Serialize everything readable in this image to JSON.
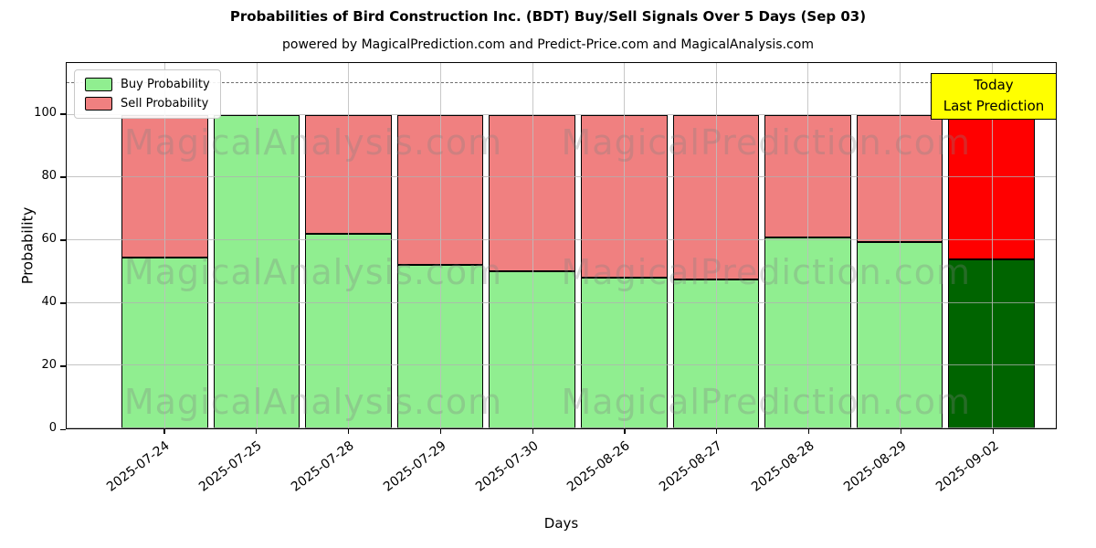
{
  "chart_data": {
    "type": "bar",
    "stacked": true,
    "title": "Probabilities of Bird Construction Inc. (BDT) Buy/Sell Signals Over 5 Days (Sep 03)",
    "subtitle": "powered by MagicalPrediction.com and Predict-Price.com and MagicalAnalysis.com",
    "xlabel": "Days",
    "ylabel": "Probability",
    "ylim": [
      0,
      116.5
    ],
    "yticks": [
      0,
      20,
      40,
      60,
      80,
      100
    ],
    "grid": true,
    "gridlines_over_bars": true,
    "dashed_line_y": 110,
    "categories": [
      "2025-07-24",
      "2025-07-25",
      "2025-07-28",
      "2025-07-29",
      "2025-07-30",
      "2025-08-26",
      "2025-08-27",
      "2025-08-28",
      "2025-08-29",
      "2025-09-02"
    ],
    "series": [
      {
        "name": "Buy Probability",
        "color": "#90EE90",
        "values": [
          54.5,
          100,
          62,
          52,
          50,
          48,
          47.5,
          61,
          59.5,
          54
        ]
      },
      {
        "name": "Sell Probability",
        "color": "#F08080",
        "values": [
          45.5,
          0,
          38,
          48,
          50,
          52,
          52.5,
          39,
          40.5,
          46
        ]
      }
    ],
    "today": {
      "index": 9,
      "buy_color": "#006400",
      "sell_color": "#FF0000"
    },
    "bar_edge_color": "#000000",
    "legend": {
      "position": "upper-left",
      "entries": [
        {
          "label": "Buy Probability",
          "color": "#90EE90"
        },
        {
          "label": "Sell Probability",
          "color": "#F08080"
        }
      ]
    },
    "annotation": {
      "lines": [
        "Today",
        "Last Prediction"
      ],
      "bg_color": "#FFFF00",
      "border_color": "#000000"
    },
    "watermarks": {
      "left_text": "MagicalAnalysis.com",
      "right_text": "MagicalPrediction.com"
    }
  }
}
